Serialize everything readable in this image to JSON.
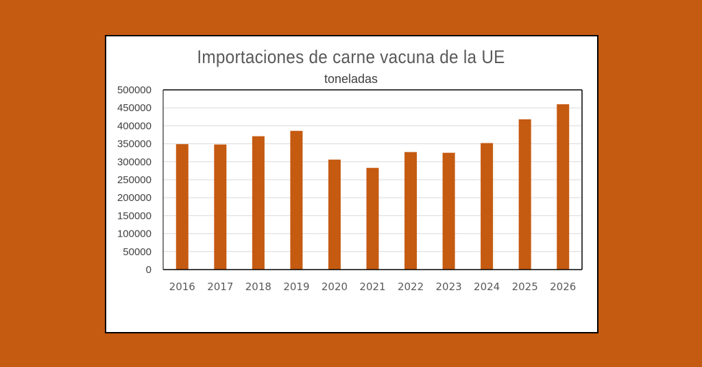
{
  "colors": {
    "background": "#C55A11",
    "bar": "#C55A11",
    "card": "#FFFFFF",
    "grid": "#D9D9D9",
    "axis": "#000000"
  },
  "chart_data": {
    "type": "bar",
    "title": "Importaciones  de carne vacuna de la UE",
    "subtitle": "toneladas",
    "xlabel": "",
    "ylabel": "",
    "categories": [
      "2016",
      "2017",
      "2018",
      "2019",
      "2020",
      "2021",
      "2022",
      "2023",
      "2024",
      "2025",
      "2026"
    ],
    "values": [
      349000,
      348000,
      371000,
      386000,
      306000,
      283000,
      327000,
      325000,
      352000,
      418000,
      460000
    ],
    "ylim": [
      0,
      500000
    ],
    "yticks": [
      0,
      50000,
      100000,
      150000,
      200000,
      250000,
      300000,
      350000,
      400000,
      450000,
      500000
    ],
    "grid": true,
    "legend": "none"
  }
}
